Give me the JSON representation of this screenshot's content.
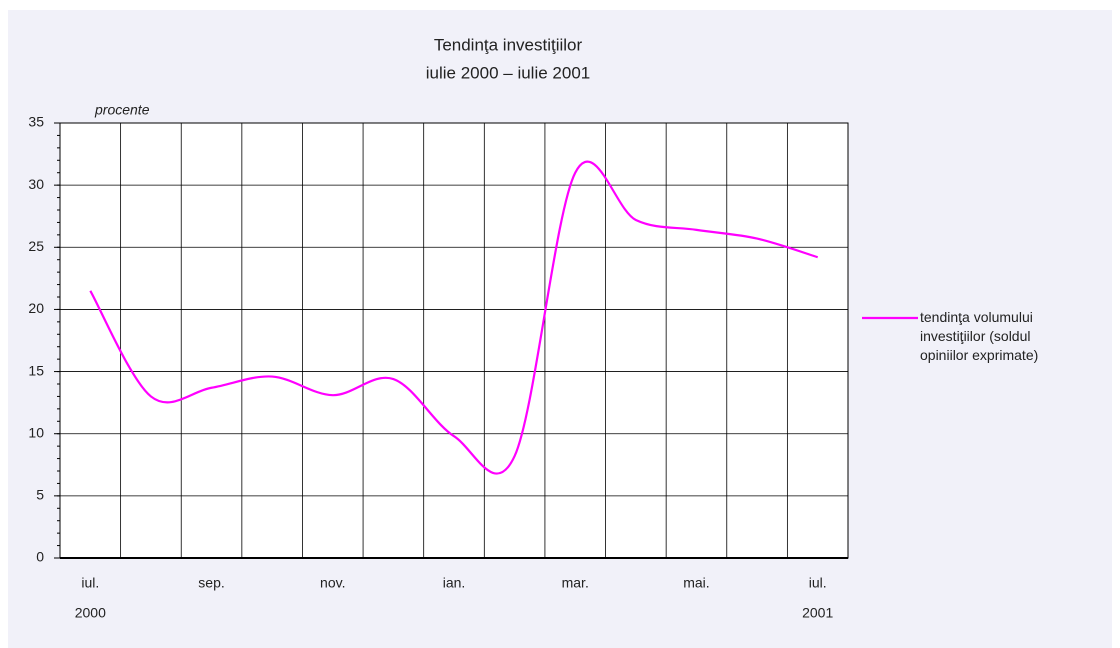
{
  "chart_data": {
    "type": "line",
    "title": "Tendinţa investiţiilor",
    "subtitle": "iulie 2000 – iulie 2001",
    "y_label": "procente",
    "categories": [
      "iul.",
      null,
      "sep.",
      null,
      "nov.",
      null,
      "ian.",
      null,
      "mar.",
      null,
      "mai.",
      null,
      "iul."
    ],
    "category_years": [
      "2000",
      null,
      null,
      null,
      null,
      null,
      null,
      null,
      null,
      null,
      null,
      null,
      "2001"
    ],
    "series": [
      {
        "name": "tendinţa volumului investiţiilor (soldul opiniilor exprimate)",
        "color": "#ff00ff",
        "values": [
          21.5,
          13.0,
          13.7,
          14.6,
          13.1,
          14.4,
          9.8,
          8.2,
          31.0,
          27.2,
          26.4,
          25.7,
          24.2
        ]
      }
    ],
    "ylim": [
      0,
      35
    ],
    "yticks": [
      0,
      5,
      10,
      15,
      20,
      25,
      30,
      35
    ],
    "grid": true,
    "legend": "right"
  }
}
